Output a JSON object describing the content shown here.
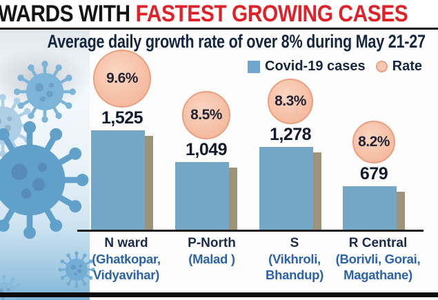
{
  "header": {
    "title_black": "WARDS WITH ",
    "title_red": "FASTEST GROWING CASES",
    "subtitle": "Average daily growth rate of over 8% during May 21-27"
  },
  "legend": {
    "cases_label": "Covid-19 cases",
    "rate_label": "Rate"
  },
  "colors": {
    "title_red": "#e02128",
    "navy_text": "#1b2b4d",
    "sublabel_blue": "#2b62a8",
    "bar_blue": "#74a7c6",
    "bar_shadow_tan": "#9d9379",
    "bubble_fill": "#f6c1a7",
    "bubble_border": "#eb9f7e"
  },
  "chart_data": {
    "type": "bar",
    "title": "WARDS WITH FASTEST GROWING CASES",
    "subtitle": "Average daily growth rate of over 8% during May 21-27",
    "legend_entries": [
      "Covid-19 cases",
      "Rate"
    ],
    "legend_position": "top-right",
    "grid": false,
    "categories": [
      "N ward",
      "P-North",
      "S",
      "R Central"
    ],
    "category_sublabels": [
      "(Ghatkopar, Vidyavihar)",
      "(Malad )",
      "(Vikhroli, Bhandup)",
      "(Borivli, Gorai, Magathane)"
    ],
    "series": [
      {
        "name": "Covid-19 cases",
        "values": [
          1525,
          1049,
          1278,
          679
        ],
        "display": [
          "1,525",
          "1,049",
          "1,278",
          "679"
        ]
      },
      {
        "name": "Rate",
        "values": [
          9.6,
          8.5,
          8.3,
          8.2
        ],
        "display": [
          "9.6%",
          "8.5%",
          "8.3%",
          "8.2%"
        ]
      }
    ]
  }
}
